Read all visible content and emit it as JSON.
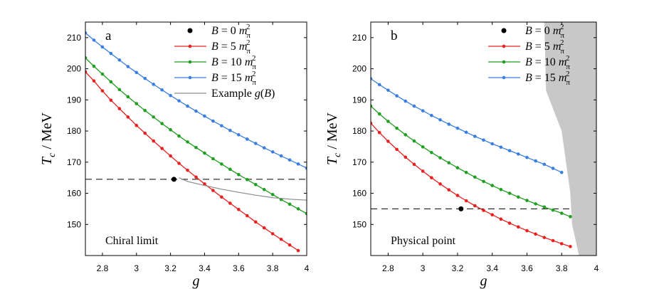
{
  "chart_data": [
    {
      "type": "line",
      "panel_label": "a",
      "annotation": "Chiral limit",
      "xlabel": "g",
      "ylabel": "T_c / MeV",
      "ylabel_parts": {
        "main": "T",
        "sub": "c",
        "rest": " / MeV"
      },
      "xlim": [
        2.7,
        4.0
      ],
      "ylim": [
        140,
        215
      ],
      "xticks": [
        2.8,
        3.0,
        3.2,
        3.4,
        3.6,
        3.8,
        4.0
      ],
      "xtick_labels": [
        "2.8",
        "3",
        "3.2",
        "3.4",
        "3.6",
        "3.8",
        "4"
      ],
      "yticks": [
        150,
        160,
        170,
        180,
        190,
        200,
        210
      ],
      "ytick_labels": [
        "150",
        "160",
        "170",
        "180",
        "190",
        "200",
        "210"
      ],
      "hline": {
        "y": 164.5,
        "style": "dashed"
      },
      "point": {
        "name": "B = 0 m_π^2",
        "x": 3.22,
        "y": 164.5
      },
      "series": [
        {
          "name": "B = 5 m_π^2",
          "label_value": "5",
          "color": "#e8211f",
          "x": [
            2.7,
            2.75,
            2.8,
            2.85,
            2.9,
            2.95,
            3.0,
            3.05,
            3.1,
            3.15,
            3.2,
            3.25,
            3.3,
            3.35,
            3.4,
            3.45,
            3.5,
            3.55,
            3.6,
            3.65,
            3.7,
            3.75,
            3.8,
            3.85,
            3.9,
            3.95
          ],
          "y": [
            199,
            196.1,
            192.9,
            189.9,
            187.2,
            184.5,
            181.8,
            179.3,
            176.8,
            174.4,
            172.0,
            169.6,
            167.4,
            165.2,
            163.0,
            160.9,
            158.8,
            156.8,
            154.8,
            152.8,
            150.8,
            148.9,
            147.0,
            145.2,
            143.4,
            141.6
          ]
        },
        {
          "name": "B = 10 m_π^2",
          "label_value": "10",
          "color": "#1f9e1f",
          "x": [
            2.7,
            2.75,
            2.8,
            2.85,
            2.9,
            2.95,
            3.0,
            3.05,
            3.1,
            3.15,
            3.2,
            3.25,
            3.3,
            3.35,
            3.4,
            3.45,
            3.5,
            3.55,
            3.6,
            3.65,
            3.7,
            3.75,
            3.8,
            3.85,
            3.9,
            3.95,
            4.0
          ],
          "y": [
            203.5,
            200.8,
            198.3,
            195.8,
            193.3,
            191.0,
            188.8,
            186.6,
            184.5,
            182.4,
            180.4,
            178.4,
            176.5,
            174.7,
            172.9,
            171.1,
            169.4,
            167.7,
            166.0,
            164.4,
            162.8,
            161.2,
            159.6,
            158.0,
            156.5,
            155.0,
            153.5
          ]
        },
        {
          "name": "B = 15 m_π^2",
          "label_value": "15",
          "color": "#3a7fe0",
          "x": [
            2.7,
            2.75,
            2.8,
            2.85,
            2.9,
            2.95,
            3.0,
            3.05,
            3.1,
            3.15,
            3.2,
            3.25,
            3.3,
            3.35,
            3.4,
            3.45,
            3.5,
            3.55,
            3.6,
            3.65,
            3.7,
            3.75,
            3.8,
            3.85,
            3.9,
            3.95,
            4.0
          ],
          "y": [
            211.5,
            209.2,
            207.0,
            204.9,
            202.8,
            200.7,
            198.8,
            196.9,
            195.0,
            193.2,
            191.4,
            189.7,
            188.0,
            186.4,
            184.8,
            183.2,
            181.7,
            180.2,
            178.8,
            177.4,
            176.0,
            174.6,
            173.3,
            172.0,
            170.7,
            169.4,
            168.1
          ]
        },
        {
          "name": "Example g(B)",
          "label_value": "",
          "color": "#8a8a8a",
          "style": "solid-nomarkers",
          "x": [
            3.25,
            3.3,
            3.4,
            3.5,
            3.6,
            3.7,
            3.8,
            3.9,
            4.0
          ],
          "y": [
            165.0,
            163.8,
            162.5,
            161.3,
            160.3,
            159.4,
            158.6,
            158.1,
            157.8
          ]
        }
      ]
    },
    {
      "type": "line",
      "panel_label": "b",
      "annotation": "Physical point",
      "xlabel": "g",
      "ylabel": "T_c / MeV",
      "ylabel_parts": {
        "main": "T",
        "sub": "c",
        "rest": " / MeV"
      },
      "xlim": [
        2.7,
        4.0
      ],
      "ylim": [
        140,
        215
      ],
      "xticks": [
        2.8,
        3.0,
        3.2,
        3.4,
        3.6,
        3.8,
        4.0
      ],
      "xtick_labels": [
        "2.8",
        "3",
        "3.2",
        "3.4",
        "3.6",
        "3.8",
        "4"
      ],
      "yticks": [
        150,
        160,
        170,
        180,
        190,
        200,
        210
      ],
      "ytick_labels": [
        "150",
        "160",
        "170",
        "180",
        "190",
        "200",
        "210"
      ],
      "hline": {
        "y": 155,
        "style": "dashed"
      },
      "point": {
        "name": "B = 0 m_π^2",
        "x": 3.22,
        "y": 155
      },
      "shaded_region": {
        "color": "#c8c8c8",
        "boundary_x": [
          3.7,
          3.71,
          3.8,
          3.85,
          3.86,
          3.9
        ],
        "boundary_y": [
          215,
          193,
          180,
          160,
          150,
          140
        ]
      },
      "series": [
        {
          "name": "B = 5 m_π^2",
          "label_value": "5",
          "color": "#e8211f",
          "x": [
            2.7,
            2.75,
            2.8,
            2.85,
            2.9,
            2.95,
            3.0,
            3.05,
            3.1,
            3.15,
            3.2,
            3.25,
            3.3,
            3.35,
            3.4,
            3.45,
            3.5,
            3.55,
            3.6,
            3.65,
            3.7,
            3.75,
            3.8,
            3.85
          ],
          "y": [
            182.5,
            179.5,
            176.7,
            174.1,
            171.6,
            169.3,
            167.1,
            165.0,
            163.0,
            161.1,
            159.3,
            157.6,
            156.0,
            154.5,
            153.1,
            151.7,
            150.4,
            149.2,
            148.0,
            146.9,
            145.8,
            144.8,
            143.8,
            142.9
          ]
        },
        {
          "name": "B = 10 m_π^2",
          "label_value": "10",
          "color": "#1f9e1f",
          "x": [
            2.7,
            2.75,
            2.8,
            2.85,
            2.9,
            2.95,
            3.0,
            3.05,
            3.1,
            3.15,
            3.2,
            3.25,
            3.3,
            3.35,
            3.4,
            3.45,
            3.5,
            3.55,
            3.6,
            3.65,
            3.7,
            3.75,
            3.8,
            3.85
          ],
          "y": [
            188.0,
            185.5,
            183.1,
            180.9,
            178.8,
            176.8,
            174.9,
            173.1,
            171.4,
            169.8,
            168.2,
            166.7,
            165.2,
            163.8,
            162.5,
            161.2,
            160.0,
            158.8,
            157.7,
            156.6,
            155.6,
            154.6,
            153.6,
            152.5
          ]
        },
        {
          "name": "B = 15 m_π^2",
          "label_value": "15",
          "color": "#3a7fe0",
          "x": [
            2.7,
            2.75,
            2.8,
            2.85,
            2.9,
            2.95,
            3.0,
            3.05,
            3.1,
            3.15,
            3.2,
            3.25,
            3.3,
            3.35,
            3.4,
            3.45,
            3.5,
            3.55,
            3.6,
            3.65,
            3.7,
            3.75,
            3.8
          ],
          "y": [
            196.8,
            194.9,
            193.1,
            191.3,
            189.6,
            188.0,
            186.5,
            185.0,
            183.6,
            182.2,
            180.9,
            179.6,
            178.3,
            177.1,
            175.9,
            174.8,
            173.7,
            172.6,
            171.5,
            170.4,
            169.3,
            168.0,
            166.7
          ]
        }
      ]
    }
  ]
}
